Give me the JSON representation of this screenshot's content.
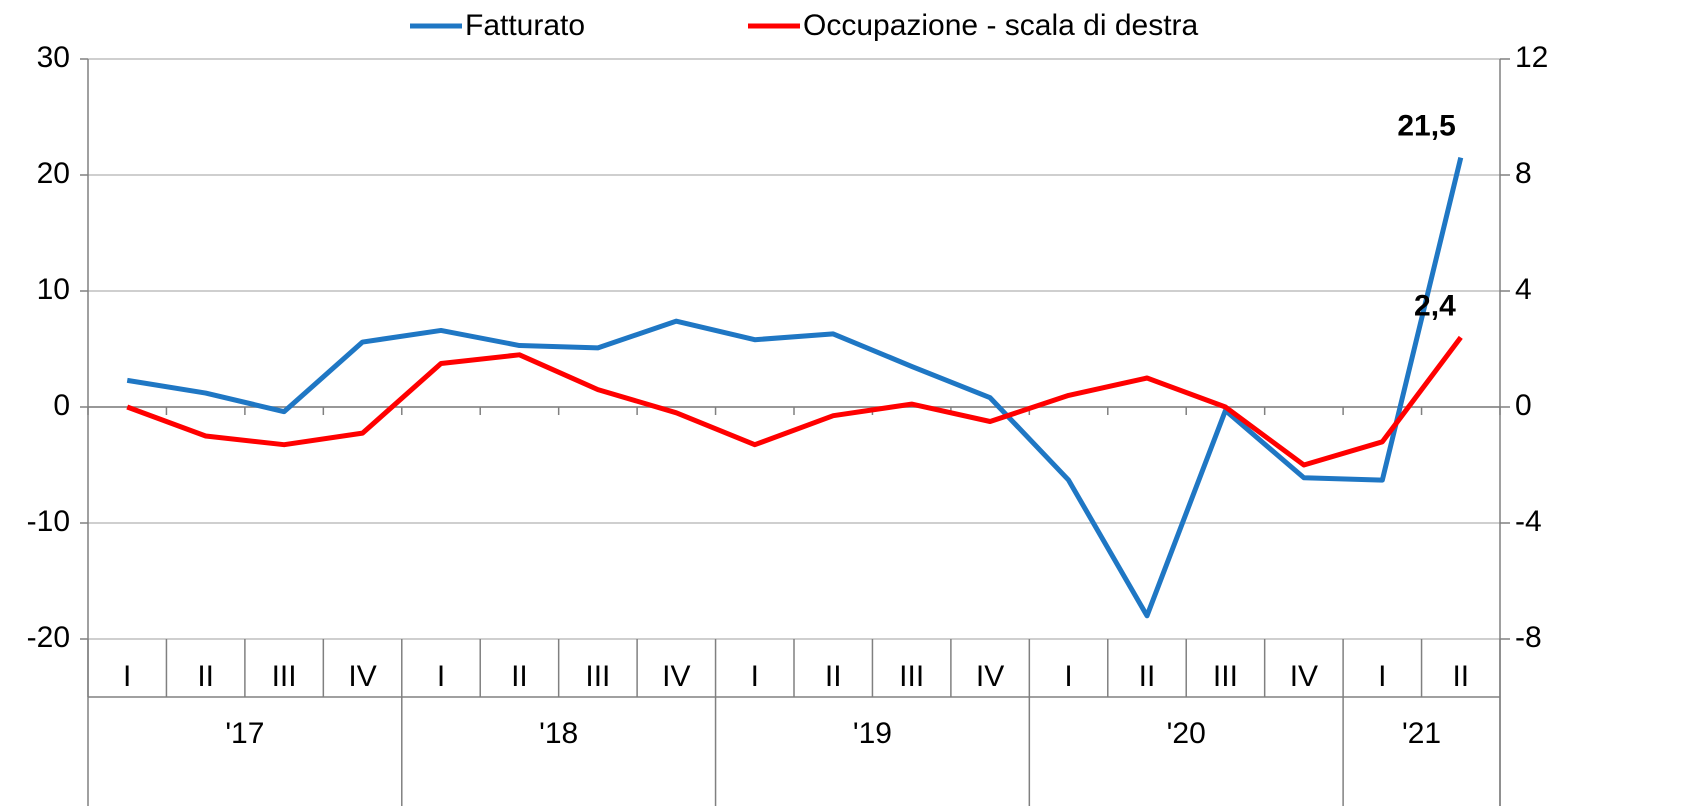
{
  "chart_data": {
    "type": "line",
    "categories": [
      "I",
      "II",
      "III",
      "IV",
      "I",
      "II",
      "III",
      "IV",
      "I",
      "II",
      "III",
      "IV",
      "I",
      "II",
      "III",
      "IV",
      "I",
      "II"
    ],
    "x_groups": [
      {
        "label": "'17",
        "categories": 4
      },
      {
        "label": "'18",
        "categories": 4
      },
      {
        "label": "'19",
        "categories": 4
      },
      {
        "label": "'20",
        "categories": 4
      },
      {
        "label": "'21",
        "categories": 2
      }
    ],
    "series": [
      {
        "name": "Fatturato",
        "color": "#1f77c4",
        "values": [
          2.3,
          1.2,
          -0.4,
          5.6,
          6.6,
          5.3,
          5.1,
          7.4,
          5.8,
          6.3,
          3.5,
          0.8,
          -6.3,
          -18.0,
          -0.3,
          -6.1,
          -6.3,
          21.5
        ],
        "value_labels": [
          null,
          null,
          null,
          null,
          null,
          null,
          null,
          null,
          null,
          null,
          null,
          null,
          null,
          null,
          null,
          null,
          null,
          "21,5"
        ]
      },
      {
        "name": "Occupazione - scala di destra",
        "color": "#ff0000",
        "axis": "y2",
        "values": [
          0,
          -1.0,
          -1.3,
          -0.9,
          1.5,
          1.8,
          0.6,
          -0.2,
          -1.3,
          -0.3,
          0.1,
          -0.5,
          0.4,
          1.0,
          0,
          -2.0,
          -1.2,
          2.4
        ],
        "value_labels": [
          null,
          null,
          null,
          null,
          null,
          null,
          null,
          null,
          null,
          null,
          null,
          null,
          null,
          null,
          null,
          null,
          null,
          "2,4"
        ]
      }
    ],
    "ylim": [
      -20,
      30
    ],
    "yticks": [
      -20,
      -10,
      0,
      10,
      20,
      30
    ],
    "y2lim": [
      -8,
      12
    ],
    "y2ticks": [
      -8,
      -4,
      0,
      4,
      8,
      12
    ],
    "grid": true,
    "legend": "top"
  }
}
